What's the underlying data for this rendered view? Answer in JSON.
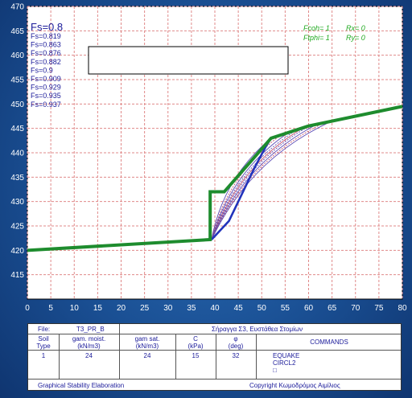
{
  "chart_data": {
    "type": "line",
    "xlim": [
      0,
      80
    ],
    "ylim": [
      410,
      470
    ],
    "x_ticks": [
      "0",
      "5",
      "10",
      "15",
      "20",
      "25",
      "30",
      "35",
      "40",
      "45",
      "50",
      "55",
      "60",
      "65",
      "70",
      "75",
      "80"
    ],
    "y_ticks": [
      "415",
      "420",
      "425",
      "430",
      "435",
      "440",
      "445",
      "450",
      "455",
      "460",
      "465",
      "470"
    ],
    "grid": true,
    "fs_title": "Fs=0.8",
    "fs_list": [
      "Fs=0.819",
      "Fs=0.863",
      "Fs=0.876",
      "Fs=0.882",
      "Fs=0.9",
      "Fs=0.909",
      "Fs=0.929",
      "Fs=0.935",
      "Fs=0.937"
    ],
    "legend": {
      "fcoh": "Fcoh= 1",
      "rx": "Rx= 0",
      "ftphi": "Ftphi= 1",
      "ry": "Ry= 0"
    },
    "ground_profile": [
      [
        0,
        420
      ],
      [
        39,
        422.2
      ],
      [
        39,
        432
      ],
      [
        42,
        432
      ],
      [
        52,
        443
      ],
      [
        60,
        445.5
      ],
      [
        80,
        449.5
      ]
    ],
    "critical_surface": [
      [
        39.3,
        422.2
      ],
      [
        43,
        426
      ],
      [
        46,
        432
      ],
      [
        48.5,
        437
      ],
      [
        51,
        441.5
      ],
      [
        52,
        443
      ]
    ],
    "slip_circles": [
      {
        "start": [
          39.3,
          422.2
        ],
        "end": [
          52,
          443
        ]
      },
      {
        "start": [
          39.3,
          422.2
        ],
        "end": [
          54,
          443.6
        ]
      },
      {
        "start": [
          39.3,
          422.2
        ],
        "end": [
          55.5,
          444
        ]
      },
      {
        "start": [
          39.3,
          422.2
        ],
        "end": [
          57,
          444.4
        ]
      },
      {
        "start": [
          39.3,
          422.2
        ],
        "end": [
          58.5,
          444.9
        ]
      },
      {
        "start": [
          39.3,
          422.2
        ],
        "end": [
          60,
          445.4
        ]
      },
      {
        "start": [
          39.3,
          422.2
        ],
        "end": [
          61.5,
          445.7
        ]
      },
      {
        "start": [
          39.3,
          422.2
        ],
        "end": [
          63,
          446
        ]
      },
      {
        "start": [
          39.3,
          422.2
        ],
        "end": [
          64.5,
          446.3
        ]
      }
    ],
    "colors": {
      "ground": "#1e8c2e",
      "critical": "#2233bb",
      "circles": "#5a4ab5",
      "circles_alt": "#c0506a",
      "grid": "#e08a8a"
    }
  },
  "info_table": {
    "file_label": "File:",
    "file_name": "T3_PR_B",
    "title": "Σήραγγα Σ3, Ευστάθεα Στομίων",
    "headers": {
      "soil_type": "Soil\nType",
      "gam_moist": "gam. moist.\n(kN/m3)",
      "gam_sat": "gam sat.\n(kN/m3)",
      "c": "C\n(kPa)",
      "phi": "φ\n(deg)",
      "commands": "COMMANDS"
    },
    "row": {
      "soil_type": "1",
      "gam_moist": "24",
      "gam_sat": "24",
      "c": "15",
      "phi": "32"
    },
    "commands": [
      "EQUAKE",
      "CIRCL2",
      "□"
    ],
    "footer_left": "Graphical Stability Elaboration",
    "footer_right": "Copyright Κωμοδρόμος Αιμίλιος"
  }
}
